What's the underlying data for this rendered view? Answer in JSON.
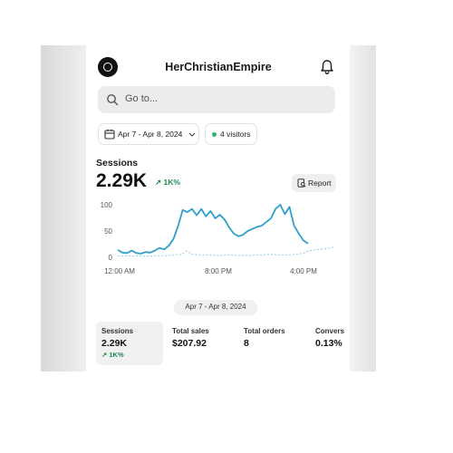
{
  "header": {
    "store_name": "HerChristianEmpire"
  },
  "search": {
    "placeholder": "Go to..."
  },
  "filters": {
    "date_range": "Apr 7 - Apr 8, 2024",
    "visitors": "4 visitors"
  },
  "sessions": {
    "title": "Sessions",
    "value": "2.29K",
    "delta": "↗ 1K%",
    "report_label": "Report"
  },
  "chart_data": {
    "type": "line",
    "x_ticks": [
      "12:00 AM",
      "8:00 PM",
      "4:00 PM"
    ],
    "y_ticks": [
      "100",
      "50",
      "0"
    ],
    "ylim": [
      0,
      100
    ],
    "series": [
      {
        "values": [
          14,
          9,
          8,
          13,
          8,
          7,
          10,
          9,
          13,
          18,
          15,
          22,
          35,
          60,
          90,
          86,
          92,
          80,
          92,
          78,
          88,
          74,
          81,
          72,
          57,
          45,
          40,
          43,
          50,
          54,
          58,
          60,
          67,
          74,
          92,
          100,
          82,
          96,
          60,
          45,
          32,
          26
        ],
        "color": "#2f9ec8"
      },
      {
        "values": [
          3,
          2,
          3,
          2,
          3,
          2,
          2,
          3,
          3,
          3,
          4,
          5,
          5,
          12,
          6,
          5,
          4,
          5,
          4,
          3,
          4,
          5,
          4,
          3,
          4,
          3,
          5,
          4,
          5,
          6,
          4,
          5,
          4,
          5,
          6,
          8,
          12,
          14,
          15,
          16,
          18,
          20
        ],
        "color": "#9fd3e6",
        "dashed": true
      }
    ]
  },
  "range_pill": "Apr 7 - Apr 8, 2024",
  "metrics": [
    {
      "label": "Sessions",
      "value": "2.29K",
      "delta": "↗ 1K%"
    },
    {
      "label": "Total sales",
      "value": "$207.92"
    },
    {
      "label": "Total orders",
      "value": "8"
    },
    {
      "label": "Convers",
      "value": "0.13%"
    }
  ],
  "colors": {
    "accent": "#2f9ec8",
    "positive": "#1e8a4f"
  }
}
